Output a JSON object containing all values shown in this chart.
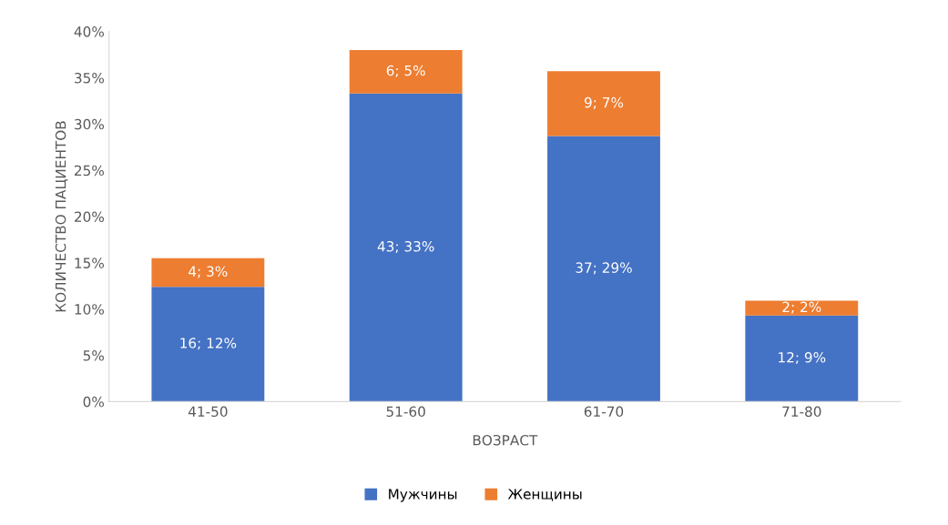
{
  "chart_data": {
    "type": "bar",
    "stacked": true,
    "xlabel": "ВОЗРАСТ",
    "ylabel": "КОЛИЧЕСТВО ПАЦИЕНТОВ",
    "categories": [
      "41-50",
      "51-60",
      "61-70",
      "71-80"
    ],
    "series": [
      {
        "name": "Мужчины",
        "color": "#4472c4",
        "values": [
          12.4,
          33.3,
          28.7,
          9.3
        ],
        "value_labels": [
          "16; 12%",
          "43; 33%",
          "37; 29%",
          "12; 9%"
        ]
      },
      {
        "name": "Женщины",
        "color": "#ed7d31",
        "values": [
          3.1,
          4.7,
          7.0,
          1.6
        ],
        "value_labels": [
          "4; 3%",
          "6; 5%",
          "9; 7%",
          "2; 2%"
        ]
      }
    ],
    "ylim": [
      0,
      40
    ],
    "yticks": [
      {
        "value": 0,
        "label": "0%"
      },
      {
        "value": 5,
        "label": "5%"
      },
      {
        "value": 10,
        "label": "10%"
      },
      {
        "value": 15,
        "label": "15%"
      },
      {
        "value": 20,
        "label": "20%"
      },
      {
        "value": 25,
        "label": "25%"
      },
      {
        "value": 30,
        "label": "30%"
      },
      {
        "value": 35,
        "label": "35%"
      },
      {
        "value": 40,
        "label": "40%"
      }
    ],
    "grid": false,
    "legend": "bottom"
  }
}
